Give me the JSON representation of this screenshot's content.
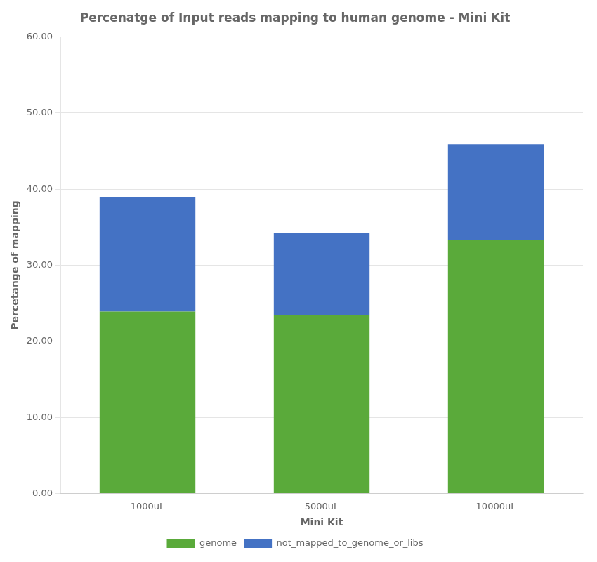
{
  "chart_data": {
    "type": "bar",
    "title": "Percenatge of Input reads mapping to human genome - Mini Kit",
    "xlabel": "Mini Kit",
    "ylabel": "Percetange of mapping",
    "categories": [
      "1000uL",
      "5000uL",
      "10000uL"
    ],
    "series": [
      {
        "name": "genome",
        "color": "#5aaa3a",
        "values": [
          23.9,
          23.5,
          33.3
        ]
      },
      {
        "name": "not_mapped_to_genome_or_libs",
        "color": "#4472c4",
        "values": [
          15.1,
          10.8,
          12.6
        ]
      }
    ],
    "stacked": true,
    "ylim": [
      0,
      60
    ],
    "yticks": [
      {
        "value": 0,
        "label": "0.00"
      },
      {
        "value": 10,
        "label": "10.00"
      },
      {
        "value": 20,
        "label": "20.00"
      },
      {
        "value": 30,
        "label": "30.00"
      },
      {
        "value": 40,
        "label": "40.00"
      },
      {
        "value": 50,
        "label": "50.00"
      },
      {
        "value": 60,
        "label": "60.00"
      }
    ],
    "grid": true,
    "legend": "bottom"
  }
}
